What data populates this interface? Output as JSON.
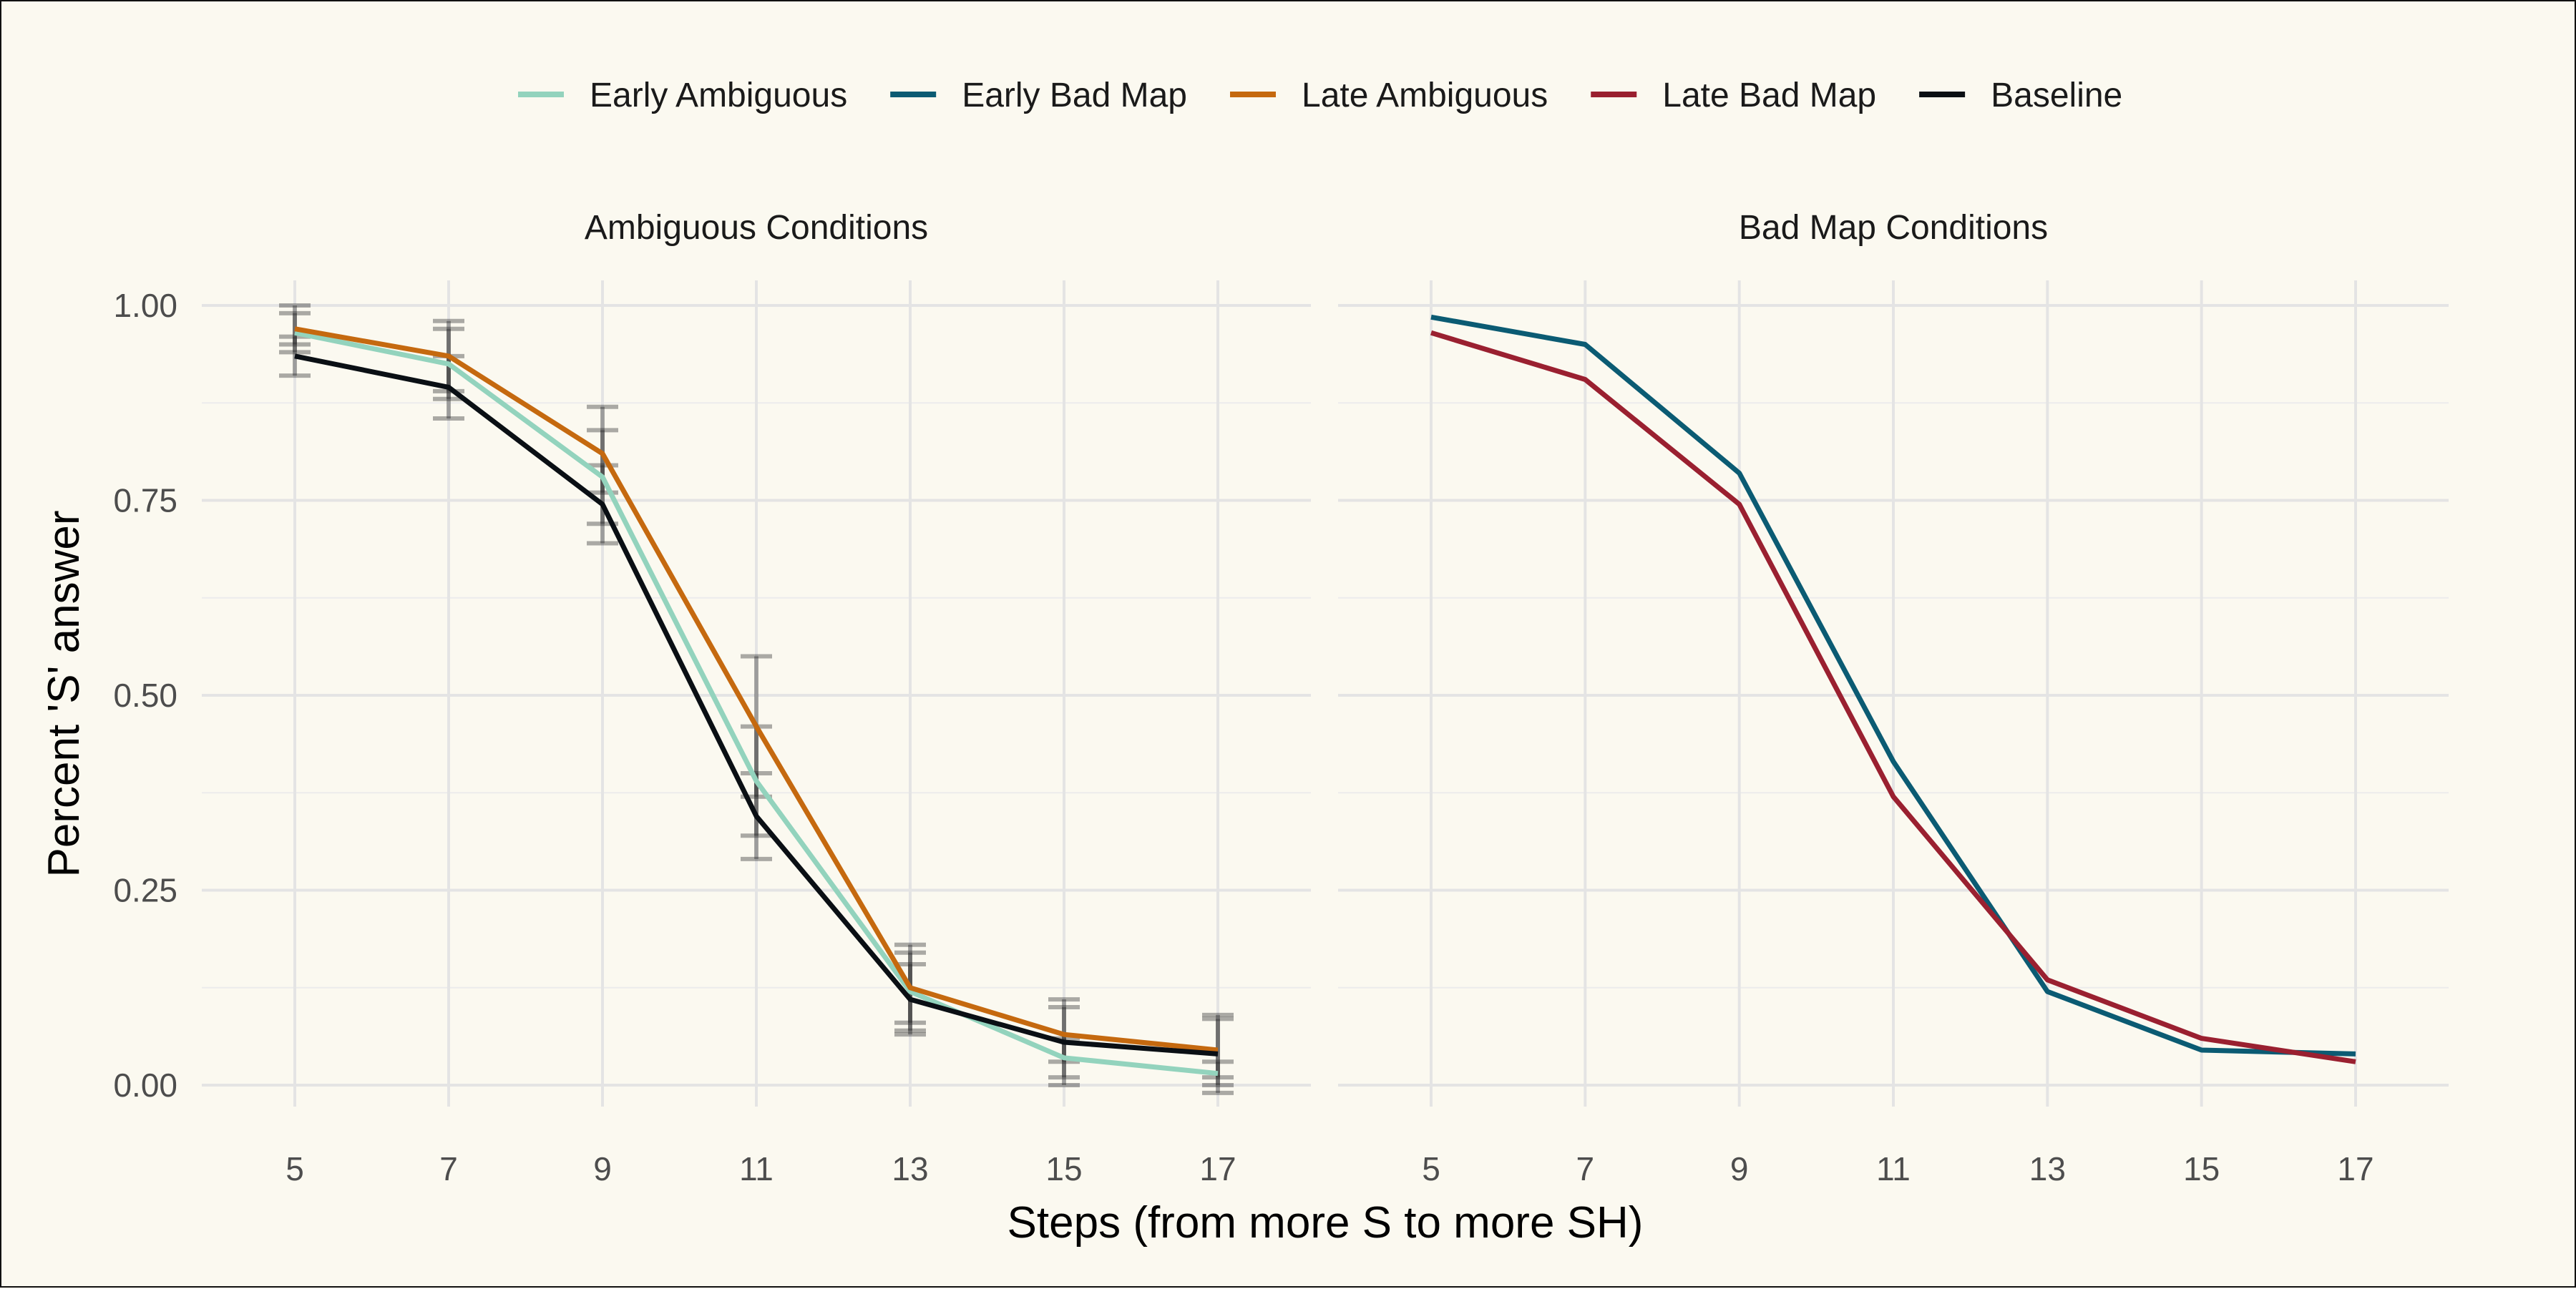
{
  "chart_data": {
    "type": "line",
    "xlabel": "Steps (from more S to more SH)",
    "ylabel": "Percent 'S' answer",
    "ylim": [
      0,
      1
    ],
    "yticks": [
      "0.00",
      "0.25",
      "0.50",
      "0.75",
      "1.00"
    ],
    "x": [
      5,
      7,
      9,
      11,
      13,
      15,
      17
    ],
    "grid": true,
    "legend_position": "top",
    "legend": [
      "Early Ambiguous",
      "Early Bad Map",
      "Late Ambiguous",
      "Late Bad Map",
      "Baseline"
    ],
    "colors": {
      "Early Ambiguous": "#93d3bd",
      "Early Bad Map": "#0b5b73",
      "Late Ambiguous": "#c5690f",
      "Late Bad Map": "#9a2030",
      "Baseline": "#0a0f14"
    },
    "panels": [
      {
        "title": "Ambiguous Conditions",
        "series": [
          {
            "name": "Early Ambiguous",
            "values": [
              0.965,
              0.925,
              0.78,
              0.39,
              0.12,
              0.035,
              0.015
            ]
          },
          {
            "name": "Late Ambiguous",
            "values": [
              0.97,
              0.935,
              0.81,
              0.46,
              0.125,
              0.065,
              0.045
            ]
          },
          {
            "name": "Baseline",
            "values": [
              0.935,
              0.895,
              0.745,
              0.345,
              0.11,
              0.055,
              0.04
            ]
          }
        ],
        "error_bars": [
          {
            "series": "Early Ambiguous",
            "lower": [
              0.94,
              0.88,
              0.72,
              0.32,
              0.07,
              0.01,
              0.0
            ],
            "upper": [
              0.99,
              0.97,
              0.84,
              0.46,
              0.17,
              0.06,
              0.03
            ]
          },
          {
            "series": "Late Ambiguous",
            "lower": [
              0.95,
              0.89,
              0.76,
              0.37,
              0.08,
              0.03,
              0.01
            ],
            "upper": [
              1.0,
              0.98,
              0.87,
              0.55,
              0.18,
              0.1,
              0.085
            ]
          },
          {
            "series": "Baseline",
            "lower": [
              0.91,
              0.855,
              0.695,
              0.29,
              0.065,
              0.0,
              -0.01
            ],
            "upper": [
              0.96,
              0.935,
              0.795,
              0.4,
              0.155,
              0.11,
              0.09
            ]
          }
        ]
      },
      {
        "title": "Bad Map Conditions",
        "series": [
          {
            "name": "Early Bad Map",
            "values": [
              0.985,
              0.95,
              0.785,
              0.415,
              0.12,
              0.045,
              0.04
            ]
          },
          {
            "name": "Late Bad Map",
            "values": [
              0.965,
              0.905,
              0.745,
              0.37,
              0.135,
              0.06,
              0.03
            ]
          }
        ],
        "error_bars": []
      }
    ]
  }
}
